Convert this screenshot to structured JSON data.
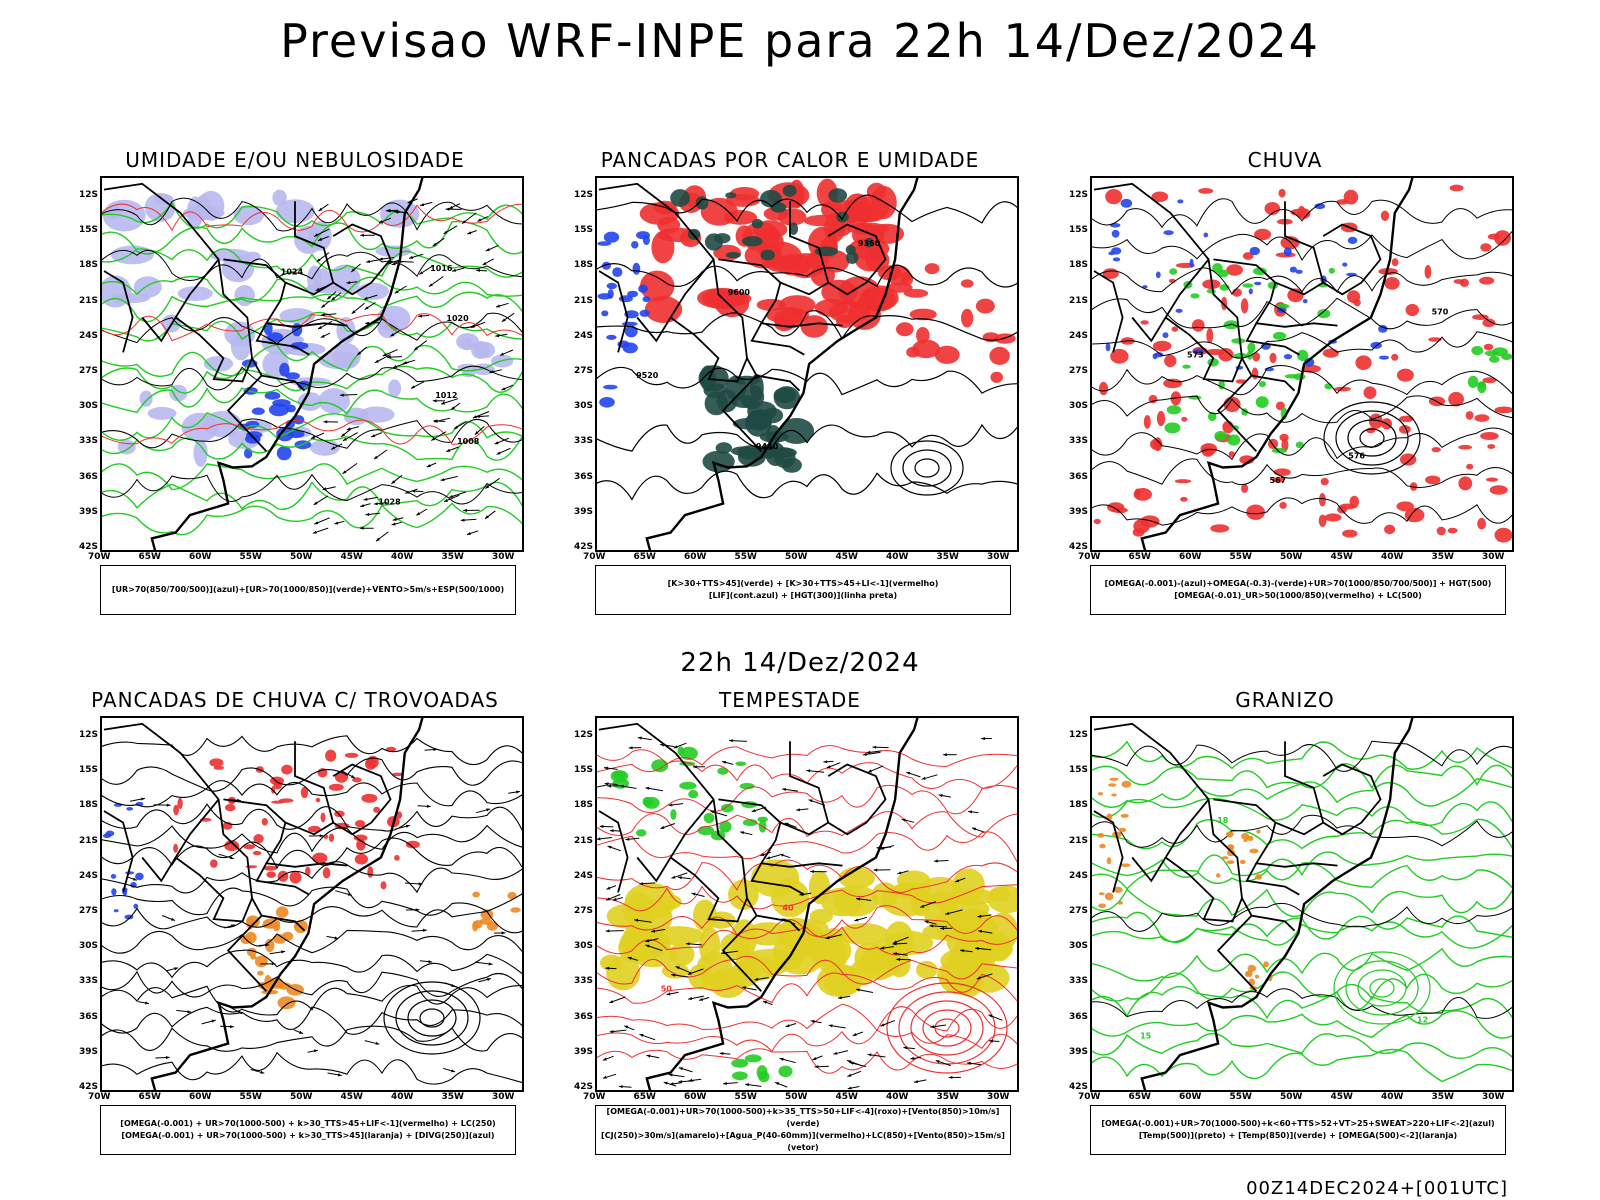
{
  "title": "Previsao WRF-INPE  para 22h 14/Dez/2024",
  "mid_title": "22h 14/Dez/2024",
  "footer": "00Z14DEC2024+[001UTC]",
  "lat_labels": [
    "12S",
    "15S",
    "18S",
    "21S",
    "24S",
    "27S",
    "30S",
    "33S",
    "36S",
    "39S",
    "42S"
  ],
  "lon_labels": [
    "70W",
    "65W",
    "60W",
    "55W",
    "50W",
    "45W",
    "40W",
    "35W",
    "30W"
  ],
  "colors": {
    "red": "#ee3030",
    "green": "#22cc22",
    "blue": "#2244ee",
    "lavender": "#b8b8f0",
    "dark_teal": "#1f4a44",
    "yellow": "#e0d020",
    "orange": "#ee8822"
  },
  "panels": [
    {
      "title": "UMIDADE E/OU NEBULOSIDADE",
      "legend": [
        "[UR>70(850/700/500)](azul)+[UR>70(1000/850)](verde)+VENTO>5m/s+ESP(500/1000)"
      ],
      "contour_labels": [
        "1008",
        "1012",
        "1016",
        "1020",
        "1024",
        "1028"
      ]
    },
    {
      "title": "PANCADAS POR CALOR E UMIDADE",
      "legend": [
        "[K>30+TTS>45](verde) + [K>30+TTS>45+LI<-1](vermelho)",
        "[LIF](cont.azul) + [HGT(300)](linha preta)"
      ],
      "contour_labels": [
        "9600",
        "9520",
        "9440",
        "9360"
      ]
    },
    {
      "title": "CHUVA",
      "legend": [
        "[OMEGA(-0.001)-(azul)+OMEGA(-0.3)-(verde)+UR>70(1000/850/700/500)] + HGT(500)",
        "[OMEGA(-0.01)_UR>50(1000/850)(vermelho) + LC(500)"
      ],
      "contour_labels": [
        "576",
        "573",
        "570",
        "567"
      ]
    },
    {
      "title": "PANCADAS DE CHUVA C/ TROVOADAS",
      "legend": [
        "[OMEGA(-0.001) + UR>70(1000-500) + k>30_TTS>45+LIF<-1](vermelho) + LC(250)",
        "[OMEGA(-0.001) + UR>70(1000-500) + k>30_TTS>45](laranja) + [DIVG(250)](azul)"
      ],
      "contour_labels": []
    },
    {
      "title": "TEMPESTADE",
      "legend": [
        "[OMEGA(-0.001)+UR>70(1000-500)+k>35_TTS>50+LIF<-4](roxo)+[Vento(850)>10m/s](verde)",
        "[CJ(250)>30m/s](amarelo)+[Agua_P(40-60mm)](vermelho)+LC(850)+[Vento(850)>15m/s](vetor)"
      ],
      "contour_labels": [
        "40",
        "50"
      ]
    },
    {
      "title": "GRANIZO",
      "legend": [
        "[OMEGA(-0.001)+UR>70(1000-500)+k<60+TTS>52+VT>25+SWEAT>220+LIF<-2](azul)",
        "[Temp(500)](preto) + [Temp(850)](verde) + [OMEGA(500)<-2](laranja)"
      ],
      "contour_labels": [
        "12",
        "15",
        "18"
      ]
    }
  ]
}
